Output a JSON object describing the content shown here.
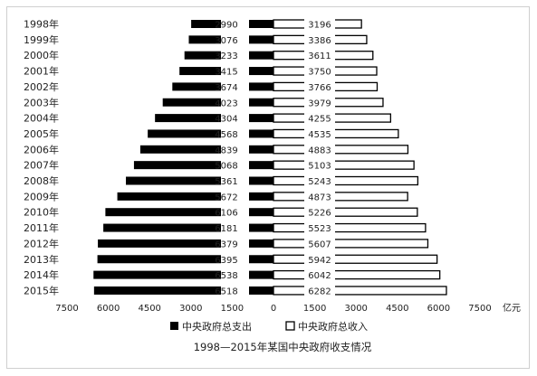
{
  "chart_data": {
    "type": "bar",
    "orientation": "horizontal-butterfly",
    "title": "1998—2015年某国中央政府收支情况",
    "unit": "亿元",
    "categories": [
      "1998年",
      "1999年",
      "2000年",
      "2001年",
      "2002年",
      "2003年",
      "2004年",
      "2005年",
      "2006年",
      "2007年",
      "2008年",
      "2009年",
      "2010年",
      "2011年",
      "2012年",
      "2013年",
      "2014年",
      "2015年"
    ],
    "series": [
      {
        "name": "中央政府总支出",
        "side": "left",
        "fill": "#000000",
        "values": [
          2990,
          3076,
          3233,
          3415,
          3674,
          4023,
          4304,
          4568,
          4839,
          5068,
          5361,
          5672,
          6106,
          6181,
          6379,
          6395,
          6538,
          6518
        ]
      },
      {
        "name": "中央政府总收入",
        "side": "right",
        "fill": "#ffffff",
        "values": [
          3196,
          3386,
          3611,
          3750,
          3766,
          3979,
          4255,
          4535,
          4883,
          5103,
          5243,
          4873,
          5226,
          5523,
          5607,
          5942,
          6042,
          6282
        ]
      }
    ],
    "xticks": [
      "7500",
      "6000",
      "4500",
      "3000",
      "1500",
      "0",
      "1500",
      "3000",
      "4500",
      "6000",
      "7500"
    ],
    "xlim": [
      -7500,
      7500
    ],
    "legend_position": "bottom",
    "grid": false
  }
}
